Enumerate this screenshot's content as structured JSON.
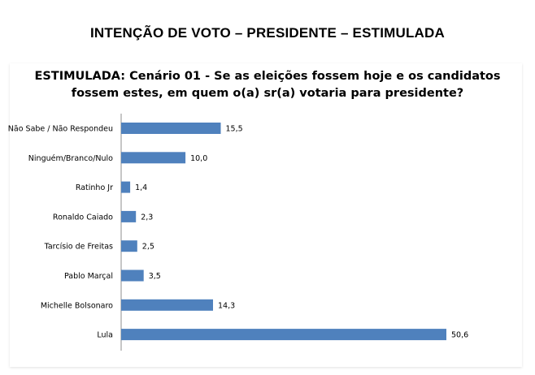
{
  "page_title": "INTENÇÃO DE VOTO – PRESIDENTE – ESTIMULADA",
  "chart_data": {
    "type": "bar",
    "orientation": "horizontal",
    "title_lines": [
      "ESTIMULADA: Cenário 01 - Se as eleições fossem hoje e os candidatos",
      "fossem estes, em quem o(a) sr(a) votaria para presidente?"
    ],
    "categories": [
      "Não Sabe / Não Respondeu",
      "Ninguém/Branco/Nulo",
      "Ratinho Jr",
      "Ronaldo Caiado",
      "Tarcísio de Freitas",
      "Pablo Marçal",
      "Michelle Bolsonaro",
      "Lula"
    ],
    "values": [
      15.5,
      10.0,
      1.4,
      2.3,
      2.5,
      3.5,
      14.3,
      50.6
    ],
    "value_labels": [
      "15,5",
      "10,0",
      "1,4",
      "2,3",
      "2,5",
      "3,5",
      "14,3",
      "50,6"
    ],
    "bar_color": "#4f81bd",
    "xlim": [
      0,
      50.6
    ],
    "grid": false,
    "legend": "none"
  }
}
